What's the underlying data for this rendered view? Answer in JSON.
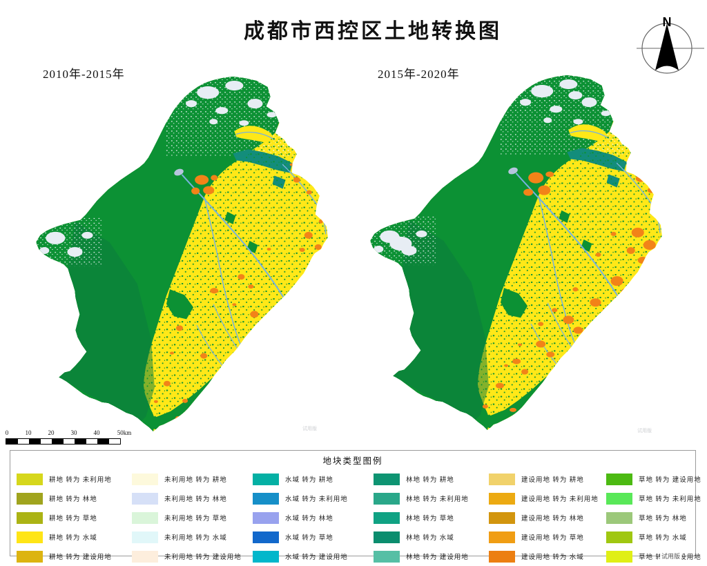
{
  "title": "成都市西控区土地转换图",
  "north_arrow_label": "N",
  "maps": [
    {
      "label": "2010年-2015年"
    },
    {
      "label": "2015年-2020年"
    }
  ],
  "scale_bar": {
    "tick_labels": [
      "0",
      "10",
      "20",
      "30",
      "40"
    ],
    "end_label": "50km"
  },
  "legend": {
    "title": "地块类型图例",
    "columns": [
      {
        "items": [
          {
            "label": "耕地 转为 未利用地",
            "color": "#d6d71c"
          },
          {
            "label": "耕地 转为 林地",
            "color": "#a0a41e"
          },
          {
            "label": "耕地 转为 草地",
            "color": "#abb314"
          },
          {
            "label": "耕地 转为 水域",
            "color": "#ffe516"
          },
          {
            "label": "耕地 转为 建设用地",
            "color": "#dcb411"
          }
        ]
      },
      {
        "items": [
          {
            "label": "未利用地 转为 耕地",
            "color": "#fdf9dc"
          },
          {
            "label": "未利用地 转为 林地",
            "color": "#d6e0f7"
          },
          {
            "label": "未利用地 转为 草地",
            "color": "#daf5da"
          },
          {
            "label": "未利用地 转为 水域",
            "color": "#e1f7f9"
          },
          {
            "label": "未利用地 转为 建设用地",
            "color": "#fdeedd"
          }
        ]
      },
      {
        "items": [
          {
            "label": "水域 转为 耕地",
            "color": "#04b0a4"
          },
          {
            "label": "水域 转为 未利用地",
            "color": "#168fc8"
          },
          {
            "label": "水域 转为 林地",
            "color": "#98a2ee"
          },
          {
            "label": "水域 转为 草地",
            "color": "#1268cb"
          },
          {
            "label": "水域 转为 建设用地",
            "color": "#02b7cb"
          }
        ]
      },
      {
        "items": [
          {
            "label": "林地 转为 耕地",
            "color": "#0e9472"
          },
          {
            "label": "林地 转为 未利用地",
            "color": "#2aa789"
          },
          {
            "label": "林地 转为 草地",
            "color": "#10a283"
          },
          {
            "label": "林地 转为 水域",
            "color": "#0b8d6e"
          },
          {
            "label": "林地 转为 建设用地",
            "color": "#56bfa5"
          }
        ]
      },
      {
        "items": [
          {
            "label": "建设用地 转为 耕地",
            "color": "#f1d26b"
          },
          {
            "label": "建设用地 转为 未利用地",
            "color": "#ecaa12"
          },
          {
            "label": "建设用地 转为 林地",
            "color": "#d2950e"
          },
          {
            "label": "建设用地 转为 草地",
            "color": "#f09d14"
          },
          {
            "label": "建设用地 转为 水域",
            "color": "#ec7f12"
          }
        ]
      },
      {
        "items": [
          {
            "label": "草地 转为 建设用地",
            "color": "#4cba12"
          },
          {
            "label": "草地 转为 未利用地",
            "color": "#59e858"
          },
          {
            "label": "草地 转为 林地",
            "color": "#9cc87a"
          },
          {
            "label": "草地 转为 水域",
            "color": "#a0c711"
          },
          {
            "label": "草地 转为 建设用地",
            "color": "#e0ef16"
          }
        ]
      }
    ]
  },
  "watermark": "试用版",
  "map_palette": {
    "forest_green": "#0c9134",
    "dark_green": "#0a7a3e",
    "cropland_yellow": "#ffe818",
    "snow_pale": "#e7edf4",
    "construction_orange": "#f28318",
    "river_blue": "#77b2dc",
    "lake_blue": "#b6c5de",
    "teal_band": "#138d7b",
    "speckle_green": "#2fc50d"
  }
}
